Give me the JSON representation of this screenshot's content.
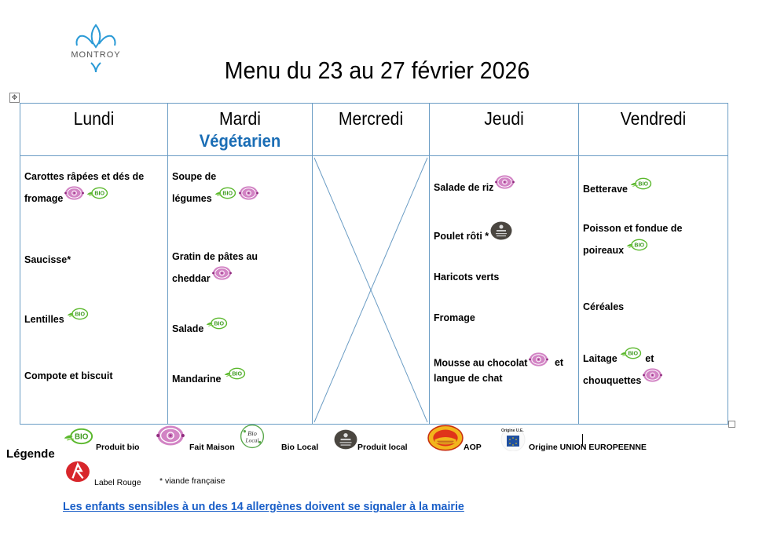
{
  "header": {
    "logo_text": "MONTROY",
    "title": "Menu du 23 au 27 février 2026",
    "table_move_icon": "move-handle-icon"
  },
  "colors": {
    "border": "#6a9cc4",
    "vegetarian": "#1a6db5",
    "link": "#1a5fc8",
    "bio_green": "#5bb82d",
    "fait_maison_pink": "#c65fb0",
    "produit_local_dark": "#4a4640"
  },
  "days": [
    {
      "name": "Lundi",
      "items": [
        {
          "lines": [
            "Carottes râpées et dés de",
            "fromage"
          ],
          "icons": [
            "fait-maison",
            "bio"
          ]
        },
        {
          "lines": [
            "Saucisse*"
          ],
          "icons": []
        },
        {
          "lines": [
            "Lentilles"
          ],
          "icons": [
            "bio"
          ]
        },
        {
          "lines": [
            "Compote et biscuit"
          ],
          "icons": []
        }
      ]
    },
    {
      "name": "Mardi",
      "subtitle": "Végétarien",
      "items": [
        {
          "lines": [
            "Soupe de",
            "légumes"
          ],
          "icons": [
            "bio",
            "fait-maison"
          ]
        },
        {
          "lines": [
            "Gratin de pâtes au",
            "cheddar"
          ],
          "icons": [
            "fait-maison"
          ]
        },
        {
          "lines": [
            "Salade"
          ],
          "icons": [
            "bio"
          ]
        },
        {
          "lines": [
            "Mandarine"
          ],
          "icons": [
            "bio"
          ]
        }
      ]
    },
    {
      "name": "Mercredi",
      "items": []
    },
    {
      "name": "Jeudi",
      "items": [
        {
          "lines": [
            "Salade de riz"
          ],
          "icons": [
            "fait-maison"
          ]
        },
        {
          "lines": [
            "Poulet rôti *"
          ],
          "icons": [
            "produit-local"
          ]
        },
        {
          "lines": [
            "Haricots verts"
          ],
          "icons": []
        },
        {
          "lines": [
            "Fromage"
          ],
          "icons": []
        },
        {
          "lines": [
            "Mousse au chocolat",
            "langue de chat"
          ],
          "icons": [
            "fait-maison"
          ],
          "suffix": "et"
        }
      ]
    },
    {
      "name": "Vendredi",
      "items": [
        {
          "lines": [
            "Betterave"
          ],
          "icons": [
            "bio"
          ]
        },
        {
          "lines": [
            "Poisson et fondue de",
            "poireaux"
          ],
          "icons": [
            "bio"
          ]
        },
        {
          "lines": [
            "Céréales"
          ],
          "icons": []
        },
        {
          "lines": [
            "Laitage",
            "chouquettes"
          ],
          "icons": [
            "bio",
            "fait-maison"
          ],
          "suffix": "et"
        }
      ]
    }
  ],
  "legend": {
    "label": "Légende",
    "entries": [
      {
        "icon": "bio-icon",
        "label": "Produit bio"
      },
      {
        "icon": "fait-maison-icon",
        "label": "Fait Maison"
      },
      {
        "icon": "bio-local-icon",
        "label": "Bio Local"
      },
      {
        "icon": "produit-local-icon",
        "label": "Produit local"
      },
      {
        "icon": "aop-icon",
        "label": "AOP"
      },
      {
        "icon": "origine-ue-icon",
        "label": "Origine UNION EUROPEENNE",
        "icon_text": "Origine U.E."
      },
      {
        "icon": "label-rouge-icon",
        "label": "Label Rouge"
      },
      {
        "icon": "",
        "label": "* viande française"
      }
    ]
  },
  "footer": {
    "allergen_notice": "Les enfants sensibles à un des 14 allergènes doivent se signaler à la mairie"
  }
}
